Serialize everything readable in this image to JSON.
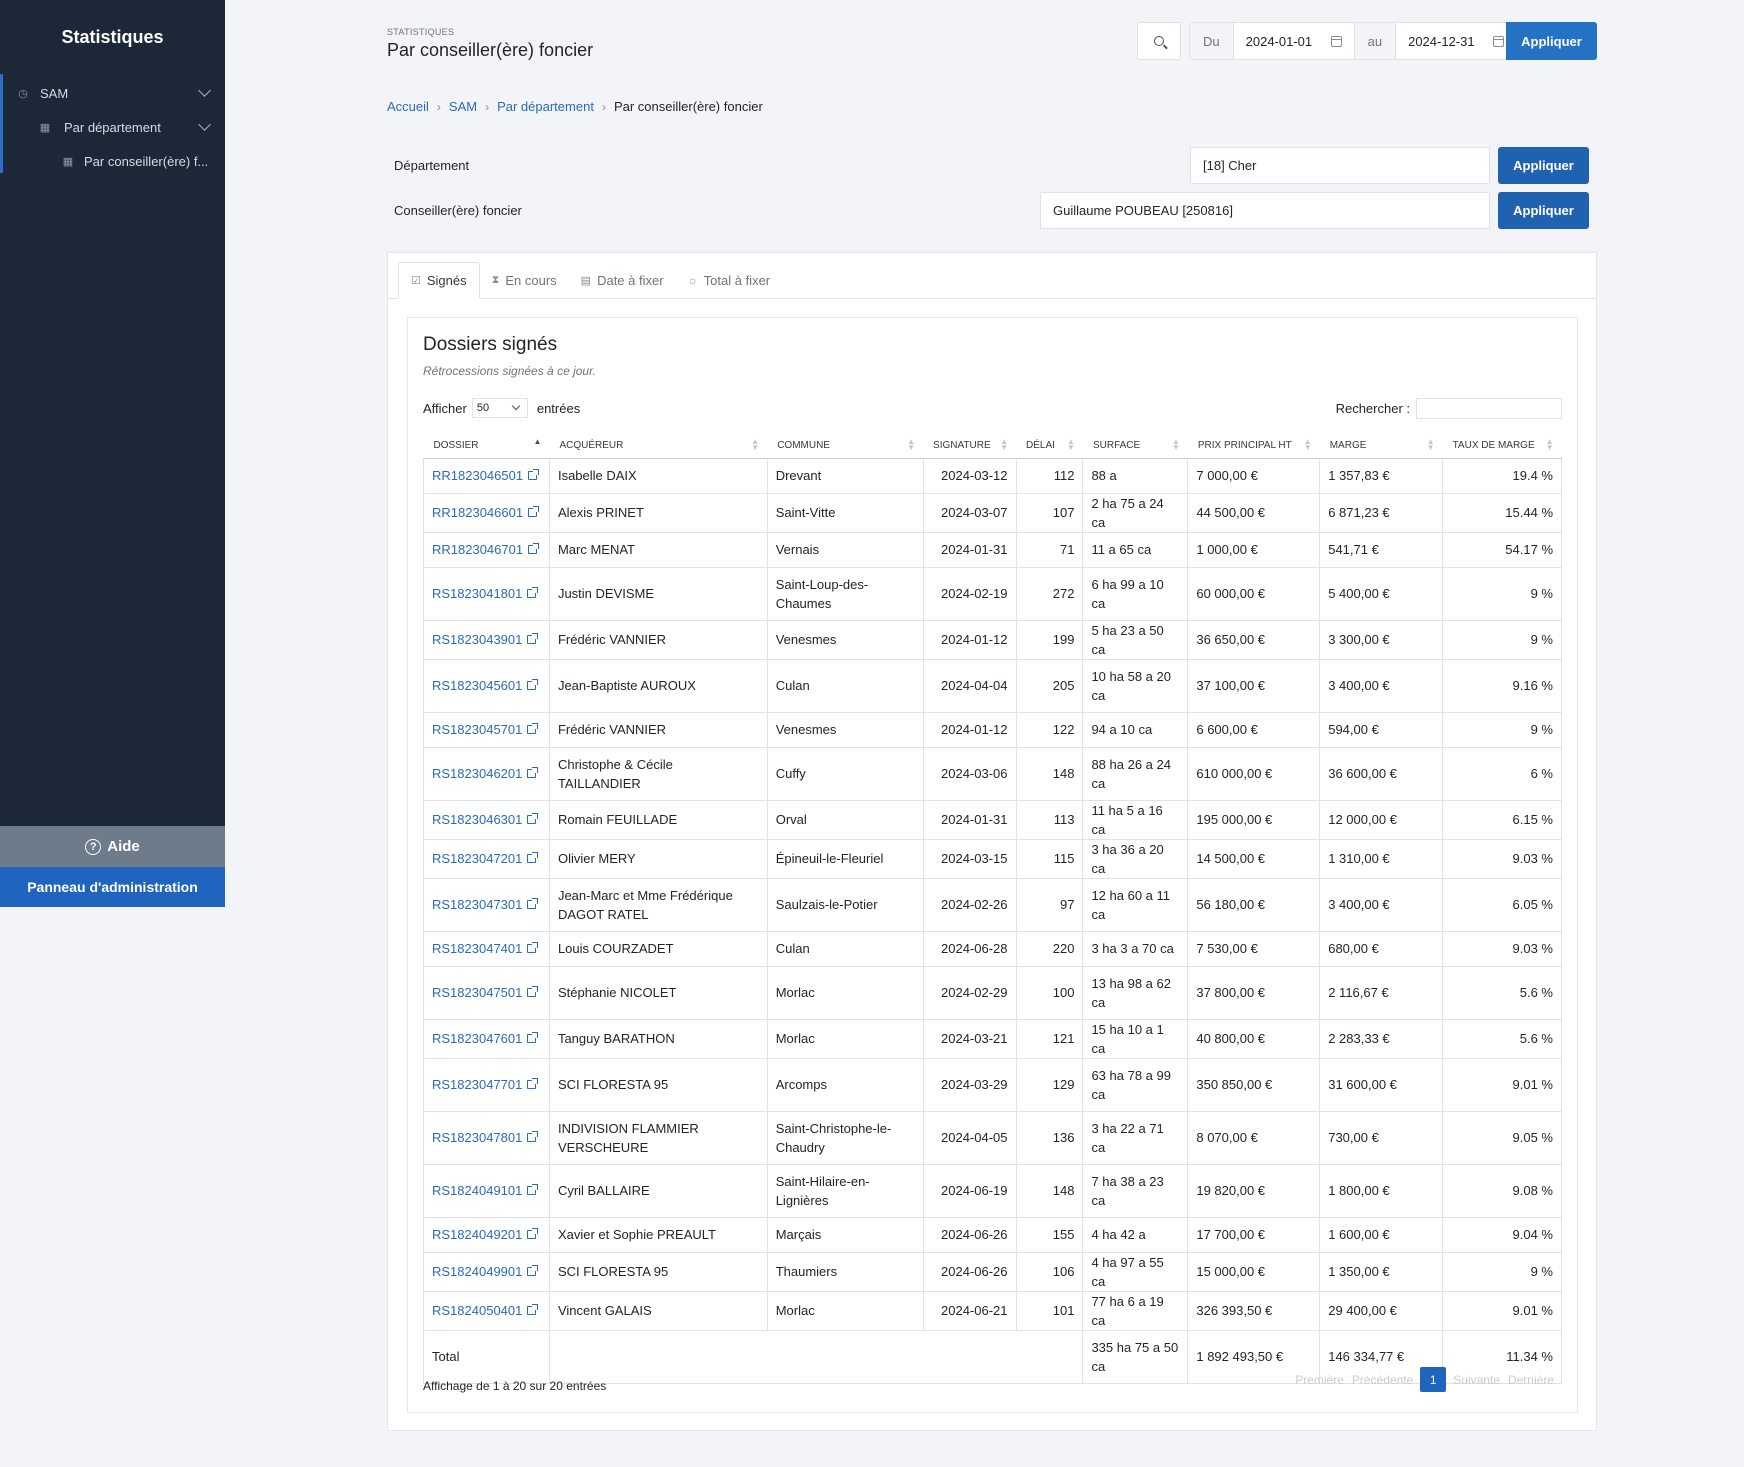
{
  "sidebar": {
    "brand": "Statistiques",
    "items": [
      {
        "label": "SAM",
        "icon": "pie-chart-icon"
      },
      {
        "label": "Par département",
        "icon": "grid-icon"
      },
      {
        "label": "Par conseiller(ère) f...",
        "icon": "grid-icon"
      }
    ],
    "help_label": "Aide",
    "admin_label": "Panneau d'administration"
  },
  "header": {
    "eyebrow": "STATISTIQUES",
    "title": "Par conseiller(ère) foncier",
    "date_from_label": "Du",
    "date_from": "2024-01-01",
    "date_to_label": "au",
    "date_to": "2024-12-31",
    "apply_label": "Appliquer"
  },
  "breadcrumb": {
    "items": [
      "Accueil",
      "SAM",
      "Par département"
    ],
    "current": "Par conseiller(ère) foncier"
  },
  "filters": {
    "department_label": "Département",
    "department_value": "[18] Cher",
    "advisor_label": "Conseiller(ère) foncier",
    "advisor_value": "Guillaume POUBEAU [250816]",
    "apply_label": "Appliquer"
  },
  "tabs": [
    {
      "label": "Signés",
      "icon": "check-square-icon"
    },
    {
      "label": "En cours",
      "icon": "hourglass-icon"
    },
    {
      "label": "Date à fixer",
      "icon": "calendar-icon"
    },
    {
      "label": "Total à fixer",
      "icon": "sun-icon"
    }
  ],
  "card": {
    "title": "Dossiers signés",
    "subtitle": "Rétrocessions signées à ce jour.",
    "show_label": "Afficher",
    "show_value": "50",
    "entries_label": "entrées",
    "search_label": "Rechercher :"
  },
  "table": {
    "columns": [
      "Dossier",
      "Acquéreur",
      "Commune",
      "Signature",
      "Délai",
      "Surface",
      "Prix principal HT",
      "Marge",
      "Taux de marge"
    ],
    "rows": [
      [
        "RR1823046501",
        "Isabelle DAIX",
        "Drevant",
        "2024-03-12",
        "112",
        "88 a",
        "7 000,00 €",
        "1 357,83 €",
        "19.4 %"
      ],
      [
        "RR1823046601",
        "Alexis PRINET",
        "Saint-Vitte",
        "2024-03-07",
        "107",
        "2 ha 75 a 24 ca",
        "44 500,00 €",
        "6 871,23 €",
        "15.44 %"
      ],
      [
        "RR1823046701",
        "Marc MENAT",
        "Vernais",
        "2024-01-31",
        "71",
        "11 a 65 ca",
        "1 000,00 €",
        "541,71 €",
        "54.17 %"
      ],
      [
        "RS1823041801",
        "Justin DEVISME",
        "Saint-Loup-des-Chaumes",
        "2024-02-19",
        "272",
        "6 ha 99 a 10 ca",
        "60 000,00 €",
        "5 400,00 €",
        "9 %"
      ],
      [
        "RS1823043901",
        "Frédéric VANNIER",
        "Venesmes",
        "2024-01-12",
        "199",
        "5 ha 23 a 50 ca",
        "36 650,00 €",
        "3 300,00 €",
        "9 %"
      ],
      [
        "RS1823045601",
        "Jean-Baptiste AUROUX",
        "Culan",
        "2024-04-04",
        "205",
        "10 ha 58 a 20 ca",
        "37 100,00 €",
        "3 400,00 €",
        "9.16 %"
      ],
      [
        "RS1823045701",
        "Frédéric VANNIER",
        "Venesmes",
        "2024-01-12",
        "122",
        "94 a 10 ca",
        "6 600,00 €",
        "594,00 €",
        "9 %"
      ],
      [
        "RS1823046201",
        "Christophe & Cécile TAILLANDIER",
        "Cuffy",
        "2024-03-06",
        "148",
        "88 ha 26 a 24 ca",
        "610 000,00 €",
        "36 600,00 €",
        "6 %"
      ],
      [
        "RS1823046301",
        "Romain FEUILLADE",
        "Orval",
        "2024-01-31",
        "113",
        "11 ha 5 a 16 ca",
        "195 000,00 €",
        "12 000,00 €",
        "6.15 %"
      ],
      [
        "RS1823047201",
        "Olivier MERY",
        "Épineuil-le-Fleuriel",
        "2024-03-15",
        "115",
        "3 ha 36 a 20 ca",
        "14 500,00 €",
        "1 310,00 €",
        "9.03 %"
      ],
      [
        "RS1823047301",
        "Jean-Marc et Mme Frédérique DAGOT RATEL",
        "Saulzais-le-Potier",
        "2024-02-26",
        "97",
        "12 ha 60 a 11 ca",
        "56 180,00 €",
        "3 400,00 €",
        "6.05 %"
      ],
      [
        "RS1823047401",
        "Louis COURZADET",
        "Culan",
        "2024-06-28",
        "220",
        "3 ha 3 a 70 ca",
        "7 530,00 €",
        "680,00 €",
        "9.03 %"
      ],
      [
        "RS1823047501",
        "Stéphanie NICOLET",
        "Morlac",
        "2024-02-29",
        "100",
        "13 ha 98 a 62 ca",
        "37 800,00 €",
        "2 116,67 €",
        "5.6 %"
      ],
      [
        "RS1823047601",
        "Tanguy BARATHON",
        "Morlac",
        "2024-03-21",
        "121",
        "15 ha 10 a 1 ca",
        "40 800,00 €",
        "2 283,33 €",
        "5.6 %"
      ],
      [
        "RS1823047701",
        "SCI FLORESTA 95",
        "Arcomps",
        "2024-03-29",
        "129",
        "63 ha 78 a 99 ca",
        "350 850,00 €",
        "31 600,00 €",
        "9.01 %"
      ],
      [
        "RS1823047801",
        "INDIVISION FLAMMIER VERSCHEURE",
        "Saint-Christophe-le-Chaudry",
        "2024-04-05",
        "136",
        "3 ha 22 a 71 ca",
        "8 070,00 €",
        "730,00 €",
        "9.05 %"
      ],
      [
        "RS1824049101",
        "Cyril BALLAIRE",
        "Saint-Hilaire-en-Lignières",
        "2024-06-19",
        "148",
        "7 ha 38 a 23 ca",
        "19 820,00 €",
        "1 800,00 €",
        "9.08 %"
      ],
      [
        "RS1824049201",
        "Xavier et Sophie PREAULT",
        "Marçais",
        "2024-06-26",
        "155",
        "4 ha 42 a",
        "17 700,00 €",
        "1 600,00 €",
        "9.04 %"
      ],
      [
        "RS1824049901",
        "SCI FLORESTA 95",
        "Thaumiers",
        "2024-06-26",
        "106",
        "4 ha 97 a 55 ca",
        "15 000,00 €",
        "1 350,00 €",
        "9 %"
      ],
      [
        "RS1824050401",
        "Vincent GALAIS",
        "Morlac",
        "2024-06-21",
        "101",
        "77 ha 6 a 19 ca",
        "326 393,50 €",
        "29 400,00 €",
        "9.01 %"
      ]
    ],
    "total": {
      "label": "Total",
      "surface": "335 ha 75 a 50 ca",
      "price": "1 892 493,50 €",
      "margin": "146 334,77 €",
      "rate": "11.34 %"
    }
  },
  "footer": {
    "info": "Affichage de 1 à 20 sur 20 entrées",
    "pager": {
      "first": "Première",
      "prev": "Précédente",
      "current": "1",
      "next": "Suivante",
      "last": "Dernière"
    }
  }
}
